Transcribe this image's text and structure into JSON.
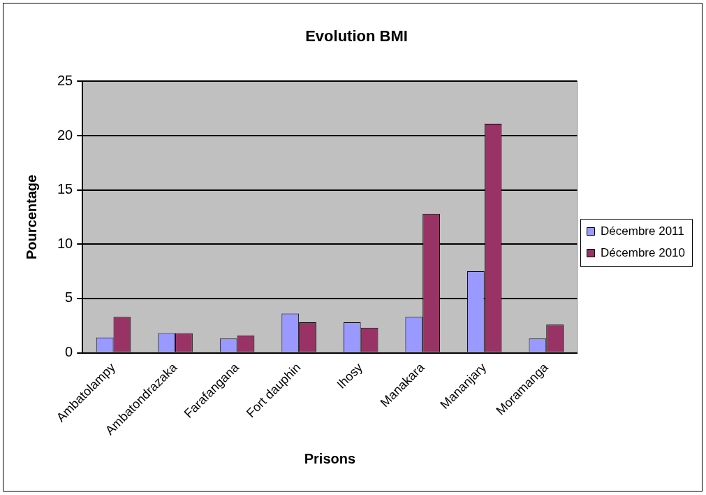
{
  "chart_data": {
    "type": "bar",
    "title": "Evolution BMI",
    "xlabel": "Prisons",
    "ylabel": "Pourcentage",
    "categories": [
      "Ambatolampy",
      "Ambatondrazaka",
      "Farafangana",
      "Fort dauphin",
      "Ihosy",
      "Manakara",
      "Mananjary",
      "Moramanga"
    ],
    "series": [
      {
        "name": "Décembre 2011",
        "color": "#9999ff",
        "values": [
          1.4,
          1.8,
          1.3,
          3.6,
          2.8,
          3.3,
          7.5,
          1.3
        ]
      },
      {
        "name": "Décembre 2010",
        "color": "#993366",
        "values": [
          3.3,
          1.8,
          1.6,
          2.8,
          2.3,
          12.8,
          21.1,
          2.6
        ]
      }
    ],
    "ylim": [
      0,
      25
    ],
    "yticks": [
      0,
      5,
      10,
      15,
      20,
      25
    ],
    "grid": "y",
    "legend": "right"
  }
}
